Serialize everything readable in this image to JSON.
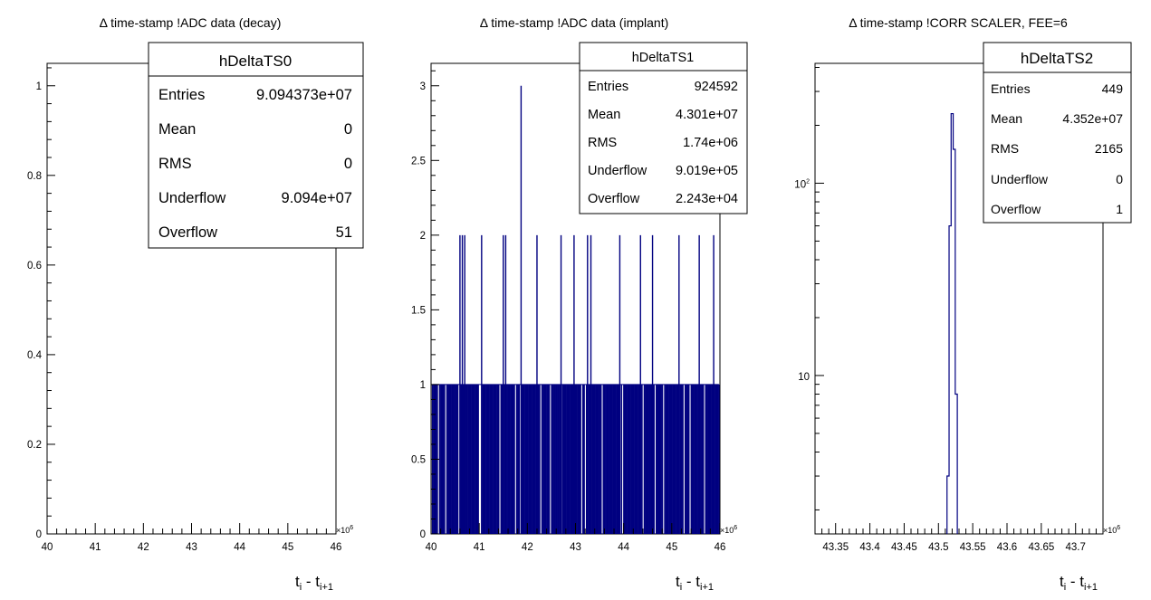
{
  "colors": {
    "histogram": "#000080",
    "axis": "#000000",
    "background": "#ffffff"
  },
  "chart_data": [
    {
      "type": "bar",
      "name": "hDeltaTS0",
      "title": "Δ time-stamp !ADC data (decay)",
      "title_symbol": "Δ",
      "title_text": " time-stamp !ADC data (decay)",
      "xlabel": {
        "main": "t",
        "sub1": "i",
        "mid": " - t",
        "sub2": "i+1"
      },
      "x_multiplier": {
        "base": "×10",
        "exp": "6"
      },
      "xlim": [
        40,
        46
      ],
      "ylim": [
        0,
        1.05
      ],
      "log_y": false,
      "x_ticks": [
        "40",
        "41",
        "42",
        "43",
        "44",
        "45",
        "46"
      ],
      "y_ticks": [
        "0",
        "0.2",
        "0.4",
        "0.6",
        "0.8",
        "1"
      ],
      "bars": [],
      "stats": {
        "title": "hDeltaTS0",
        "rows": [
          {
            "label": "Entries",
            "value": "9.094373e+07"
          },
          {
            "label": "Mean",
            "value": "0"
          },
          {
            "label": "RMS",
            "value": "0"
          },
          {
            "label": "Underflow",
            "value": "9.094e+07"
          },
          {
            "label": "Overflow",
            "value": "51"
          }
        ]
      }
    },
    {
      "type": "bar",
      "name": "hDeltaTS1",
      "title": "Δ time-stamp !ADC data (implant)",
      "title_symbol": "Δ",
      "title_text": " time-stamp !ADC data (implant)",
      "xlabel": {
        "main": "t",
        "sub1": "i",
        "mid": " - t",
        "sub2": "i+1"
      },
      "x_multiplier": {
        "base": "×10",
        "exp": "6"
      },
      "xlim": [
        40,
        46
      ],
      "ylim": [
        0,
        3.15
      ],
      "log_y": false,
      "x_ticks": [
        "40",
        "41",
        "42",
        "43",
        "44",
        "45",
        "46"
      ],
      "y_ticks": [
        "0",
        "0.5",
        "1",
        "1.5",
        "2",
        "2.5",
        "3"
      ],
      "bins": {
        "start": 40.03,
        "end": 46.0,
        "width": 0.025,
        "base_value": 1
      },
      "bars": [
        {
          "x": 40.6,
          "value": 2
        },
        {
          "x": 40.65,
          "value": 2
        },
        {
          "x": 40.7,
          "value": 2
        },
        {
          "x": 41.05,
          "value": 2
        },
        {
          "x": 41.5,
          "value": 2
        },
        {
          "x": 41.55,
          "value": 2
        },
        {
          "x": 41.87,
          "value": 3
        },
        {
          "x": 42.2,
          "value": 2
        },
        {
          "x": 42.7,
          "value": 2
        },
        {
          "x": 42.97,
          "value": 2
        },
        {
          "x": 43.25,
          "value": 2
        },
        {
          "x": 43.32,
          "value": 2
        },
        {
          "x": 43.92,
          "value": 2
        },
        {
          "x": 44.35,
          "value": 2
        },
        {
          "x": 44.6,
          "value": 2
        },
        {
          "x": 45.15,
          "value": 2
        },
        {
          "x": 45.57,
          "value": 2
        },
        {
          "x": 45.87,
          "value": 2
        }
      ],
      "stats": {
        "title": "hDeltaTS1",
        "rows": [
          {
            "label": "Entries",
            "value": "924592"
          },
          {
            "label": "Mean",
            "value": "4.301e+07"
          },
          {
            "label": "RMS",
            "value": "1.74e+06"
          },
          {
            "label": "Underflow",
            "value": "9.019e+05"
          },
          {
            "label": "Overflow",
            "value": "2.243e+04"
          }
        ]
      }
    },
    {
      "type": "bar",
      "name": "hDeltaTS2",
      "title": "Δ time-stamp !CORR SCALER, FEE=6",
      "title_symbol": "Δ",
      "title_text": " time-stamp !CORR SCALER, FEE=6",
      "xlabel": {
        "main": "t",
        "sub1": "i",
        "mid": " - t",
        "sub2": "i+1"
      },
      "x_multiplier": {
        "base": "×10",
        "exp": "6"
      },
      "xlim": [
        43.32,
        43.74
      ],
      "ylim": [
        1.5,
        420
      ],
      "log_y": true,
      "x_ticks": [
        "43.35",
        "43.4",
        "43.45",
        "43.5",
        "43.55",
        "43.6",
        "43.65",
        "43.7"
      ],
      "y_ticks": [
        {
          "value": 10,
          "base": "10",
          "exp": ""
        },
        {
          "value": 100,
          "base": "10",
          "exp": "2"
        }
      ],
      "bars": [
        {
          "x0": 43.5125,
          "x1": 43.5155,
          "value": 3
        },
        {
          "x0": 43.5155,
          "x1": 43.5185,
          "value": 60
        },
        {
          "x0": 43.5185,
          "x1": 43.5215,
          "value": 230
        },
        {
          "x0": 43.5215,
          "x1": 43.5245,
          "value": 150
        },
        {
          "x0": 43.5245,
          "x1": 43.5275,
          "value": 8
        }
      ],
      "stats": {
        "title": "hDeltaTS2",
        "rows": [
          {
            "label": "Entries",
            "value": "449"
          },
          {
            "label": "Mean",
            "value": "4.352e+07"
          },
          {
            "label": "RMS",
            "value": "2165"
          },
          {
            "label": "Underflow",
            "value": "0"
          },
          {
            "label": "Overflow",
            "value": "1"
          }
        ]
      }
    }
  ]
}
